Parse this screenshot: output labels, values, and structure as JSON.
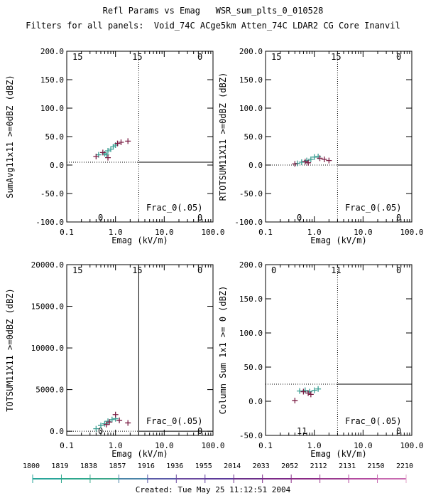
{
  "header": {
    "title": "Refl Params vs Emag   WSR_sum_plts_0_010528",
    "subtitle": "Filters for all panels:  Void_74C ACge5km Atten_74C LDAR2 CG Core Inanvil"
  },
  "footer": {
    "created": "Created: Tue May 25 11:12:51 2004"
  },
  "colors": {
    "plus_teal": "#3a9e92",
    "plus_dark": "#7a1d44",
    "axis": "#000000"
  },
  "chart_data": [
    {
      "type": "scatter",
      "ylabel": "SumAvg11x11 >=0dBZ (dBZ)",
      "xlabel": "Emag (kV/m)",
      "xscale": "log",
      "xlim": [
        0.1,
        100.0
      ],
      "ylim": [
        -100.0,
        200.0
      ],
      "xticks": [
        "0.1",
        "1.0",
        "10.0",
        "100.0"
      ],
      "yticks": [
        "-100.0",
        "-50.0",
        "0.0",
        "50.0",
        "100.0",
        "150.0",
        "200.0"
      ],
      "vline_x": 3.0,
      "vline_style": "dotted",
      "hline_y": 5.0,
      "corners": {
        "top_left": "15",
        "top_mid": "15",
        "top_right": "0",
        "bottom_left": "0",
        "bottom_right": "0"
      },
      "frac_label": "Frac_0(.05)",
      "series": [
        {
          "color": "teal",
          "points": [
            [
              0.45,
              18
            ],
            [
              0.6,
              20
            ],
            [
              0.7,
              25
            ],
            [
              0.8,
              28
            ],
            [
              0.9,
              32
            ],
            [
              1.0,
              35
            ],
            [
              0.65,
              18
            ]
          ]
        },
        {
          "color": "dark",
          "points": [
            [
              0.4,
              15
            ],
            [
              0.55,
              22
            ],
            [
              0.7,
              13
            ],
            [
              1.1,
              38
            ],
            [
              1.3,
              40
            ],
            [
              1.8,
              42
            ]
          ]
        }
      ]
    },
    {
      "type": "scatter",
      "ylabel": "RTOTSUM11X11 >=0dBZ (dBZ)",
      "xlabel": "Emag (kV/m)",
      "xscale": "log",
      "xlim": [
        0.1,
        100.0
      ],
      "ylim": [
        -100.0,
        200.0
      ],
      "xticks": [
        "0.1",
        "1.0",
        "10.0",
        "100.0"
      ],
      "yticks": [
        "-100.0",
        "-50.0",
        "0.0",
        "50.0",
        "100.0",
        "150.0",
        "200.0"
      ],
      "vline_x": 3.0,
      "vline_style": "dotted",
      "hline_y": 0.0,
      "corners": {
        "top_left": "15",
        "top_mid": "15",
        "top_right": "0",
        "bottom_left": "0",
        "bottom_right": "0"
      },
      "frac_label": "Frac_0(.05)",
      "series": [
        {
          "color": "teal",
          "points": [
            [
              0.45,
              3
            ],
            [
              0.55,
              5
            ],
            [
              0.7,
              8
            ],
            [
              0.85,
              10
            ],
            [
              1.0,
              14
            ],
            [
              1.2,
              15
            ]
          ]
        },
        {
          "color": "dark",
          "points": [
            [
              0.4,
              2
            ],
            [
              0.65,
              6
            ],
            [
              0.75,
              4
            ],
            [
              1.3,
              12
            ],
            [
              1.6,
              10
            ],
            [
              2.0,
              8
            ]
          ]
        }
      ]
    },
    {
      "type": "scatter",
      "ylabel": "TOTSUM11X11 >=0dBZ (dBZ)",
      "xlabel": "Emag (kV/m)",
      "xscale": "log",
      "xlim": [
        0.1,
        100.0
      ],
      "ylim": [
        -500.0,
        20000.0
      ],
      "xticks": [
        "0.1",
        "1.0",
        "10.0",
        "100.0"
      ],
      "yticks": [
        "0.0",
        "5000.0",
        "10000.0",
        "15000.0",
        "20000.0"
      ],
      "vline_x": 3.0,
      "vline_style": "solid",
      "hline_y": 0.0,
      "corners": {
        "top_left": "15",
        "top_mid": "15",
        "top_right": "0",
        "bottom_left": "0",
        "bottom_right": "0"
      },
      "frac_label": "Frac_0(.05)",
      "series": [
        {
          "color": "teal",
          "points": [
            [
              0.4,
              300
            ],
            [
              0.5,
              700
            ],
            [
              0.6,
              900
            ],
            [
              0.7,
              1200
            ],
            [
              0.85,
              1400
            ],
            [
              1.0,
              1500
            ]
          ]
        },
        {
          "color": "dark",
          "points": [
            [
              0.65,
              800
            ],
            [
              1.0,
              2000
            ],
            [
              1.2,
              1300
            ],
            [
              1.8,
              1000
            ],
            [
              0.75,
              1100
            ]
          ]
        }
      ]
    },
    {
      "type": "scatter",
      "ylabel": "Column Sum 1x1 >= 0 (dBZ)",
      "xlabel": "Emag (kV/m)",
      "xscale": "log",
      "xlim": [
        0.1,
        100.0
      ],
      "ylim": [
        -50.0,
        200.0
      ],
      "xticks": [
        "0.1",
        "1.0",
        "10.0",
        "100.0"
      ],
      "yticks": [
        "-50.0",
        "0.0",
        "50.0",
        "100.0",
        "150.0",
        "200.0"
      ],
      "vline_x": 3.0,
      "vline_style": "dotted",
      "hline_y": 25.0,
      "corners": {
        "top_left": "0",
        "top_mid": "11",
        "top_right": "0",
        "bottom_left": "11",
        "bottom_right": "0"
      },
      "frac_label": "Frac_0(.05)",
      "series": [
        {
          "color": "teal",
          "points": [
            [
              0.5,
              15
            ],
            [
              0.65,
              16
            ],
            [
              0.8,
              14
            ],
            [
              1.0,
              16
            ],
            [
              1.2,
              18
            ]
          ]
        },
        {
          "color": "dark",
          "points": [
            [
              0.4,
              1
            ],
            [
              0.6,
              14
            ],
            [
              0.75,
              12
            ],
            [
              0.85,
              10
            ]
          ]
        }
      ]
    }
  ],
  "colorbar": {
    "ticks": [
      "1800",
      "1819",
      "1838",
      "1857",
      "1916",
      "1936",
      "1955",
      "2014",
      "2033",
      "2052",
      "2112",
      "2131",
      "2150",
      "2210"
    ],
    "colors": [
      "#2aa59a",
      "#2ea78d",
      "#3aa68a",
      "#4a84a8",
      "#5a5aa8",
      "#6a4aa0",
      "#5d3a9a",
      "#6b2f8a",
      "#7c2a88",
      "#8a2a86",
      "#9a3a8f",
      "#b34ba0",
      "#c76ab0",
      "#e2a3c8"
    ]
  }
}
